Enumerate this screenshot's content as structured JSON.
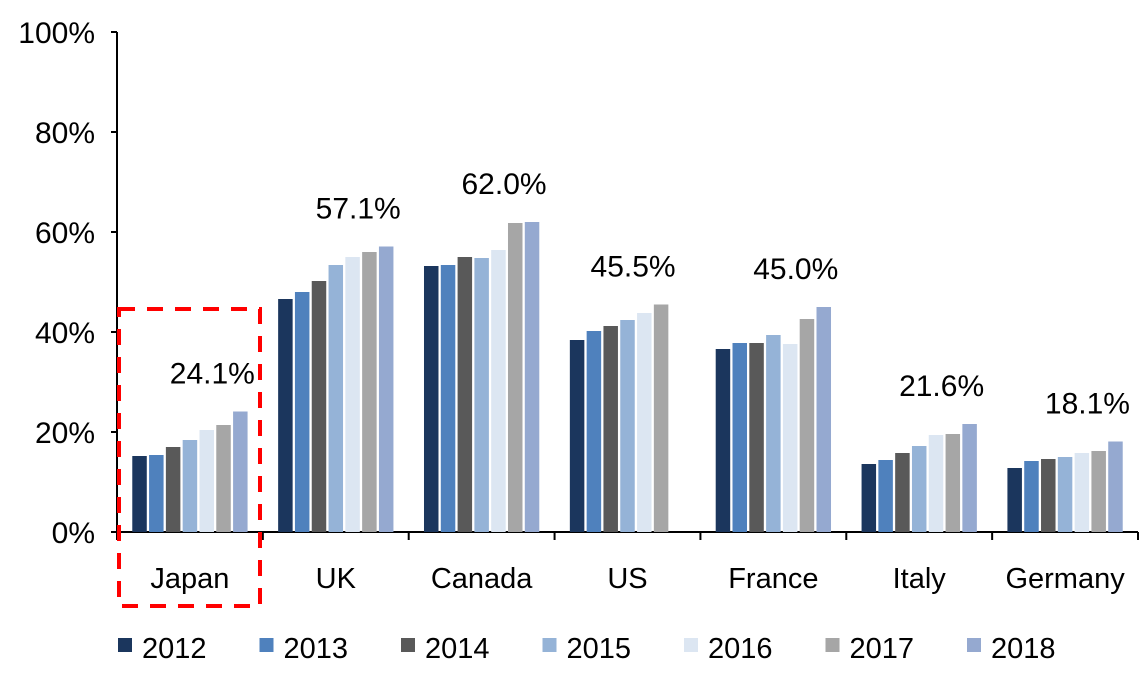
{
  "chart_data": {
    "type": "bar",
    "title": "",
    "xlabel": "",
    "ylabel": "",
    "ylim": [
      0,
      100
    ],
    "yticks": [
      "0%",
      "20%",
      "40%",
      "60%",
      "80%",
      "100%"
    ],
    "grid": false,
    "legend_position": "bottom",
    "categories": [
      "Japan",
      "UK",
      "Canada",
      "US",
      "France",
      "Italy",
      "Germany"
    ],
    "series": [
      {
        "name": "2012",
        "color": "#1b365d",
        "values": [
          15.2,
          46.6,
          53.2,
          38.4,
          36.6,
          13.6,
          12.8
        ]
      },
      {
        "name": "2013",
        "color": "#4f81bd",
        "values": [
          15.4,
          48.0,
          53.4,
          40.2,
          37.8,
          14.4,
          14.2
        ]
      },
      {
        "name": "2014",
        "color": "#595959",
        "values": [
          17.0,
          50.2,
          55.0,
          41.2,
          37.8,
          15.8,
          14.6
        ]
      },
      {
        "name": "2015",
        "color": "#95b3d7",
        "values": [
          18.4,
          53.4,
          54.8,
          42.4,
          39.4,
          17.2,
          15.0
        ]
      },
      {
        "name": "2016",
        "color": "#dce6f2",
        "values": [
          20.4,
          55.0,
          56.4,
          43.8,
          37.6,
          19.4,
          15.8
        ]
      },
      {
        "name": "2017",
        "color": "#a6a6a6",
        "values": [
          21.4,
          56.0,
          61.8,
          45.5,
          42.6,
          19.6,
          16.2
        ]
      },
      {
        "name": "2018",
        "color": "#95a9d0",
        "values": [
          24.1,
          57.1,
          62.0,
          null,
          45.0,
          21.6,
          18.1
        ]
      }
    ],
    "annotations": [
      "24.1%",
      "57.1%",
      "62.0%",
      "45.5%",
      "45.0%",
      "21.6%",
      "18.1%"
    ],
    "highlight": {
      "category": "Japan",
      "color": "#ff0000",
      "style": "dashed box"
    }
  }
}
